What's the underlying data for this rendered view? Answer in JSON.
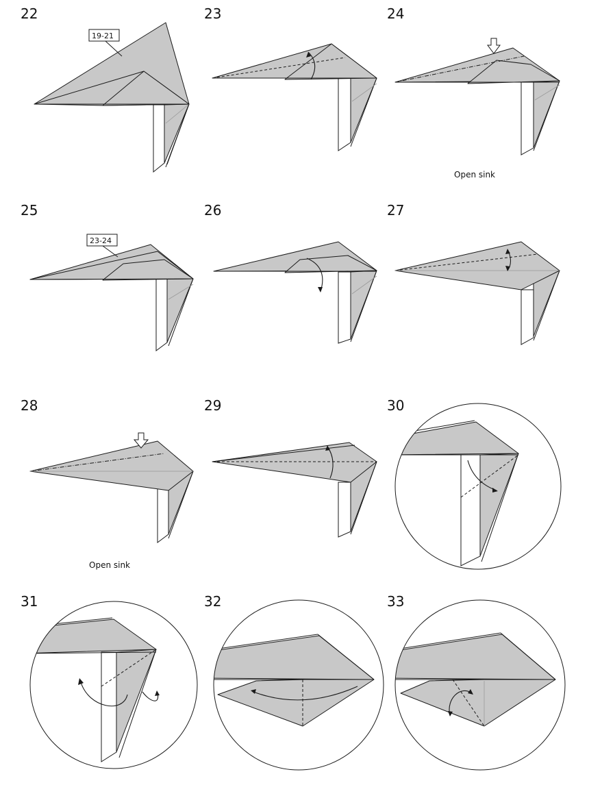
{
  "steps": [
    {
      "number": "22",
      "ref": "19-21"
    },
    {
      "number": "23"
    },
    {
      "number": "24",
      "caption": "Open sink"
    },
    {
      "number": "25",
      "ref": "23-24"
    },
    {
      "number": "26"
    },
    {
      "number": "27"
    },
    {
      "number": "28",
      "caption": "Open sink"
    },
    {
      "number": "29"
    },
    {
      "number": "30"
    },
    {
      "number": "31"
    },
    {
      "number": "32"
    },
    {
      "number": "33"
    }
  ]
}
